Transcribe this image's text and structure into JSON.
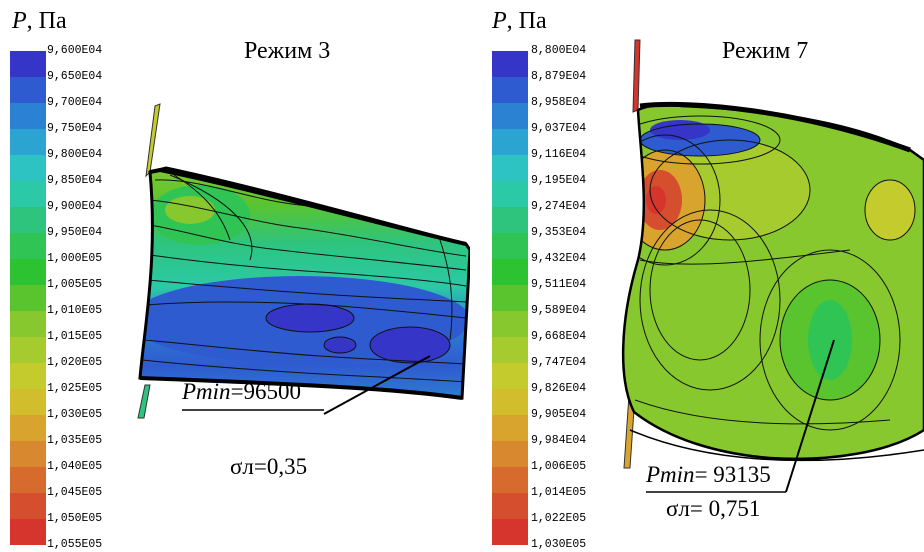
{
  "colors": {
    "scale": [
      "#3535c8",
      "#2f5bd0",
      "#2c82d2",
      "#2ca4d1",
      "#2ec3c3",
      "#2bc9a6",
      "#2ec47e",
      "#30c455",
      "#2dc232",
      "#5ac42f",
      "#86c82e",
      "#a5cb2f",
      "#c4cc2d",
      "#d2be2c",
      "#d8a42d",
      "#d8882e",
      "#d76a2d",
      "#d54e2d",
      "#d5352d",
      "#d52c2c"
    ]
  },
  "panels": [
    {
      "axis_symbol": "P",
      "axis_unit": ", Па",
      "mode_title": "Режим 3",
      "colorbar_ticks": [
        "9,600E04",
        "9,650E04",
        "9,700E04",
        "9,750E04",
        "9,800E04",
        "9,850E04",
        "9,900E04",
        "9,950E04",
        "1,000E05",
        "1,005E05",
        "1,010E05",
        "1,015E05",
        "1,020E05",
        "1,025E05",
        "1,030E05",
        "1,035E05",
        "1,040E05",
        "1,045E05",
        "1,050E05",
        "1,055E05"
      ],
      "pmin_label": "Pmin",
      "pmin_value": "=96500",
      "sigma_label": "σл=0,35"
    },
    {
      "axis_symbol": "P",
      "axis_unit": ", Па",
      "mode_title": "Режим 7",
      "colorbar_ticks": [
        "8,800E04",
        "8,879E04",
        "8,958E04",
        "9,037E04",
        "9,116E04",
        "9,195E04",
        "9,274E04",
        "9,353E04",
        "9,432E04",
        "9,511E04",
        "9,589E04",
        "9,668E04",
        "9,747E04",
        "9,826E04",
        "9,905E04",
        "9,984E04",
        "1,006E05",
        "1,014E05",
        "1,022E05",
        "1,030E05"
      ],
      "pmin_label": "Pmin",
      "pmin_value": "= 93135",
      "sigma_label": "σл= 0,751"
    }
  ]
}
